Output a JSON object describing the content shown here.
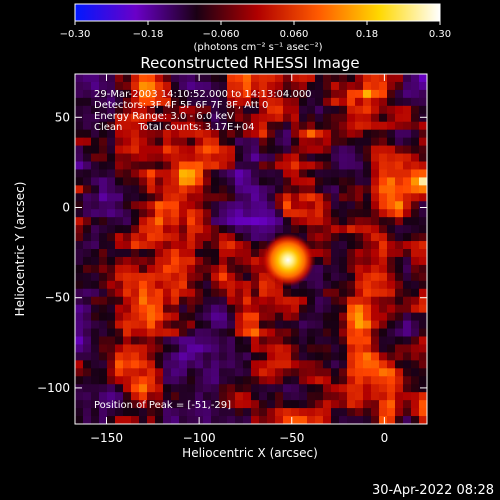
{
  "colorbar": {
    "min": -0.3,
    "max": 0.3,
    "tick_labels": [
      "-0.30",
      "-0.18",
      "-0.060",
      "0.060",
      "0.18",
      "0.30"
    ],
    "unit_label": "(photons cm⁻² s⁻¹ asec⁻²)",
    "colors": [
      "#0018ff",
      "#6a00c8",
      "#1a0014",
      "#b00000",
      "#ff5a00",
      "#ffd800",
      "#ffffff"
    ]
  },
  "chart_data": {
    "type": "heatmap",
    "title": "Reconstructed RHESSI Image",
    "xlabel": "Heliocentric X (arcsec)",
    "ylabel": "Heliocentric Y (arcsec)",
    "xlim": [
      -167,
      23
    ],
    "ylim": [
      -120,
      74
    ],
    "x_ticks": [
      -150,
      -100,
      -50,
      0
    ],
    "y_ticks": [
      -100,
      -50,
      0,
      50
    ],
    "x_tick_labels": [
      "−150",
      "−100",
      "−50",
      "0"
    ],
    "y_tick_labels": [
      "−100",
      "−50",
      "0",
      "50"
    ],
    "peak_position": [
      -51,
      -29
    ],
    "annotations": [
      "29-Mar-2003 14:10:52.000 to 14:13:04.000",
      "Detectors: 3F 4F 5F 6F 7F 8F, Att 0",
      "Energy Range: 3.0 - 6.0 keV",
      "Clean     Total counts: 3.17E+04"
    ],
    "peak_label": "Position of Peak = [-51,-29]"
  },
  "timestamp": "30-Apr-2022 08:28"
}
